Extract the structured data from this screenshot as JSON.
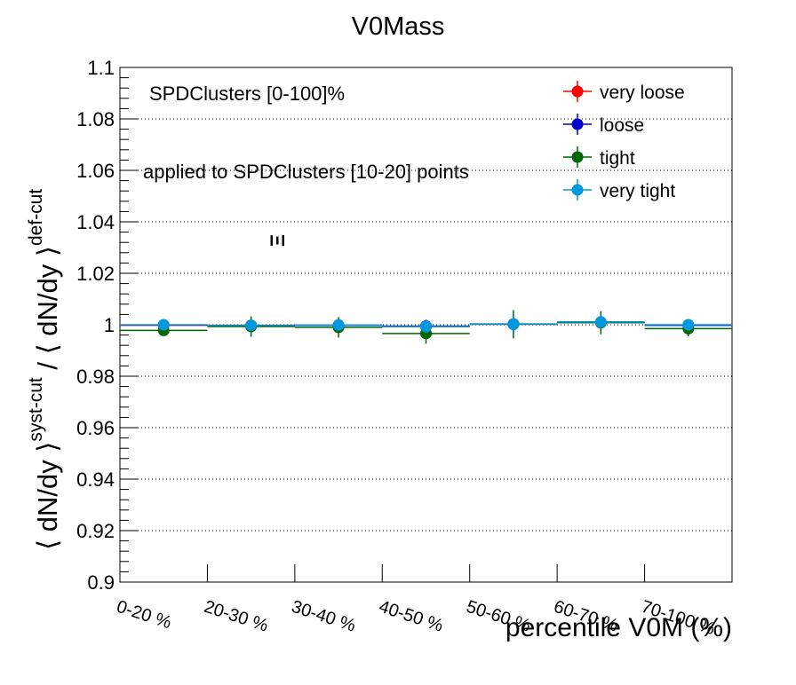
{
  "chart_data": {
    "type": "scatter",
    "title": "V0Mass",
    "xlabel": "percentile V0M (%)",
    "ylabel": {
      "part1": "⟨ dN/dy ⟩",
      "sup1": "syst-cut",
      "sep": " / ",
      "part2": "⟨ dN/dy ⟩",
      "sup2": "def-cut"
    },
    "ylim": [
      0.9,
      1.1
    ],
    "yticks": [
      "0.9",
      "0.92",
      "0.94",
      "0.96",
      "0.98",
      "1",
      "1.02",
      "1.04",
      "1.06",
      "1.08",
      "1.1"
    ],
    "categories": [
      "0-20 %",
      "20-30 %",
      "30-40 %",
      "40-50 %",
      "50-60 %",
      "60-70 %",
      "70-100 %"
    ],
    "grid": "horizontal dotted",
    "legend_position": "top-right",
    "annotations": {
      "range": "SPDClusters [0-100]%",
      "applied": "applied to SPDClusters [10-20] points",
      "particle": "Ξ"
    },
    "series": [
      {
        "name": "very loose",
        "color": "#ff0000",
        "values": [
          0.9998,
          0.9998,
          0.9999,
          0.9993,
          1.0003,
          1.001,
          0.9999
        ],
        "errors": [
          0.001,
          0.0015,
          0.002,
          0.0025,
          0.0035,
          0.0025,
          0.002
        ]
      },
      {
        "name": "loose",
        "color": "#0000cc",
        "values": [
          0.9999,
          0.9997,
          0.9998,
          0.9995,
          1.0002,
          1.0009,
          0.9998
        ],
        "errors": [
          0.001,
          0.0015,
          0.002,
          0.0025,
          0.0035,
          0.0025,
          0.002
        ]
      },
      {
        "name": "tight",
        "color": "#006600",
        "values": [
          0.9978,
          0.9993,
          0.999,
          0.9966,
          1.0002,
          1.0008,
          0.9985
        ],
        "errors": [
          0.0012,
          0.004,
          0.004,
          0.004,
          0.0055,
          0.0045,
          0.003
        ]
      },
      {
        "name": "very tight",
        "color": "#0099dd",
        "values": [
          1.0,
          0.9998,
          0.9999,
          0.9993,
          1.0003,
          1.0011,
          1.0
        ],
        "errors": [
          0.001,
          0.0015,
          0.002,
          0.0025,
          0.0035,
          0.0025,
          0.002
        ]
      }
    ]
  }
}
